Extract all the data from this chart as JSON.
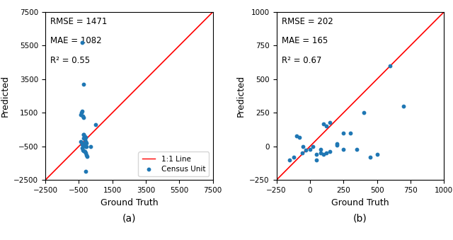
{
  "plot_a": {
    "rmse": 1471,
    "mae": 1082,
    "r2": 0.55,
    "xlim": [
      -2500,
      7500
    ],
    "ylim": [
      -2500,
      7500
    ],
    "xticks": [
      -2500,
      -500,
      1500,
      3500,
      5500,
      7500
    ],
    "yticks": [
      -2500,
      -500,
      1500,
      3500,
      5500,
      7500
    ],
    "xlabel": "Ground Truth",
    "ylabel": "Predicted",
    "label": "(a)",
    "scatter_x": [
      -300,
      -200,
      -300,
      -350,
      -250,
      -200,
      -150,
      -100,
      -200,
      -150,
      -100,
      -50,
      -200,
      -150,
      -100,
      -50,
      200,
      -300,
      -250,
      -200,
      -150,
      -100,
      -50,
      0,
      -200,
      -400,
      -300,
      -200,
      -100,
      500,
      -400,
      -300
    ],
    "scatter_y": [
      5700,
      3200,
      1600,
      1500,
      1300,
      200,
      100,
      50,
      0,
      -100,
      -200,
      -300,
      -400,
      -450,
      -500,
      -500,
      -500,
      -600,
      -700,
      -750,
      -800,
      -900,
      -1000,
      -1100,
      200,
      -200,
      -400,
      1200,
      -2000,
      800,
      1400,
      -300
    ]
  },
  "plot_b": {
    "rmse": 202,
    "mae": 165,
    "r2": 0.67,
    "xlim": [
      -250,
      1000
    ],
    "ylim": [
      -250,
      1000
    ],
    "xticks": [
      -250,
      0,
      250,
      500,
      750,
      1000
    ],
    "yticks": [
      -250,
      0,
      250,
      500,
      750,
      1000
    ],
    "xlabel": "Ground Truth",
    "ylabel": "Predicted",
    "label": "(b)",
    "scatter_x": [
      -150,
      -120,
      -100,
      -80,
      -60,
      -50,
      -30,
      0,
      20,
      50,
      80,
      100,
      120,
      150,
      200,
      250,
      300,
      350,
      400,
      450,
      500,
      600,
      700,
      50,
      80,
      100,
      120,
      150,
      200,
      250
    ],
    "scatter_y": [
      -100,
      -80,
      80,
      70,
      -50,
      0,
      -30,
      -20,
      0,
      -60,
      -50,
      170,
      150,
      180,
      10,
      100,
      100,
      -20,
      250,
      -80,
      -60,
      600,
      300,
      -100,
      -20,
      -60,
      -50,
      -40,
      20,
      -20
    ]
  },
  "dot_color": "#1f77b4",
  "line_color": "red",
  "legend_line_label": "1:1 Line",
  "legend_dot_label": "Census Unit",
  "background_color": "#ffffff",
  "annotation_fontsize": 8.5,
  "label_fontsize": 9,
  "tick_fontsize": 7.5
}
